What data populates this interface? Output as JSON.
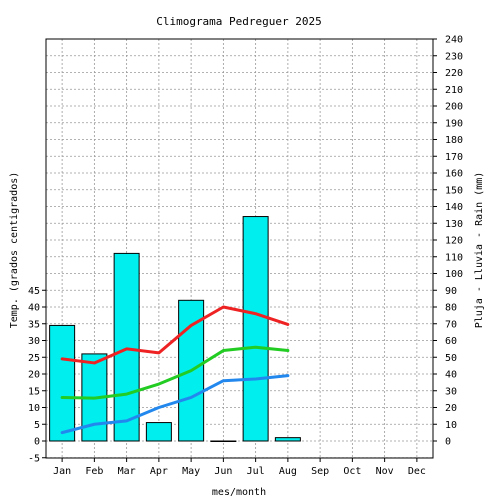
{
  "chart_data": {
    "type": "bar",
    "title": "Climograma Pedreguer 2025",
    "xlabel": "mes/month",
    "ylabel_left": "Temp. (grados centigrados)",
    "ylabel_right": "Pluja - Lluvia - Rain (mm)",
    "categories": [
      "Jan",
      "Feb",
      "Mar",
      "Apr",
      "May",
      "Jun",
      "Jul",
      "Aug",
      "Sep",
      "Oct",
      "Nov",
      "Dec"
    ],
    "y_left": {
      "range": [
        -5,
        45
      ],
      "ticks": [
        "-5",
        "0",
        "5",
        "10",
        "15",
        "20",
        "25",
        "30",
        "35",
        "40",
        "45"
      ]
    },
    "y_right": {
      "range": [
        0,
        240
      ],
      "ticks": [
        "0",
        "10",
        "20",
        "30",
        "40",
        "50",
        "60",
        "70",
        "80",
        "90",
        "100",
        "110",
        "120",
        "130",
        "140",
        "150",
        "160",
        "170",
        "180",
        "190",
        "200",
        "210",
        "220",
        "230",
        "240"
      ]
    },
    "grid": true,
    "bars": {
      "axis": "right",
      "color": "#00eeee",
      "values": [
        69,
        52,
        112,
        11,
        84,
        0,
        134,
        2,
        null,
        null,
        null,
        null
      ]
    },
    "lines": [
      {
        "axis": "left",
        "color": "#ee2222",
        "values": [
          24.5,
          23.3,
          27.5,
          26.3,
          34.5,
          40.0,
          38.0,
          34.8,
          null,
          null,
          null,
          null
        ]
      },
      {
        "axis": "left",
        "color": "#22cc22",
        "values": [
          13.0,
          12.8,
          14.0,
          17.0,
          21.0,
          27.0,
          28.0,
          27.0,
          null,
          null,
          null,
          null
        ]
      },
      {
        "axis": "left",
        "color": "#2288ee",
        "values": [
          2.5,
          5.0,
          6.0,
          10.0,
          13.0,
          18.0,
          18.5,
          19.5,
          null,
          null,
          null,
          null
        ]
      }
    ]
  }
}
